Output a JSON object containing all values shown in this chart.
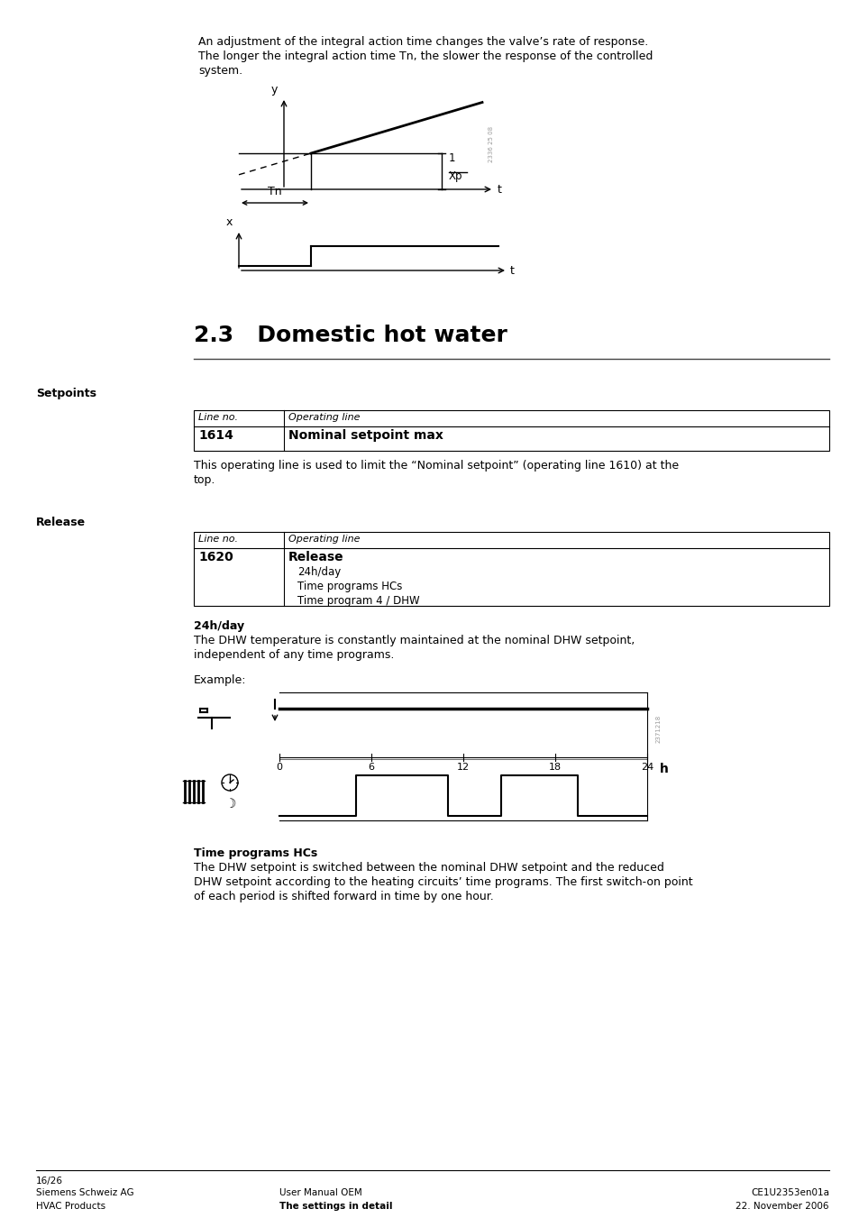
{
  "page_bg": "#ffffff",
  "intro_text_line1": "An adjustment of the integral action time changes the valve’s rate of response.",
  "intro_text_line2": "The longer the integral action time Tn, the slower the response of the controlled",
  "intro_text_line3": "system.",
  "section_title": "2.3   Domestic hot water",
  "setpoints_label": "Setpoints",
  "release_label": "Release",
  "table1_line_no": "1614",
  "table1_op_line": "Nominal setpoint max",
  "table1_header_line": "Line no.",
  "table1_header_op": "Operating line",
  "desc1_line1": "This operating line is used to limit the “Nominal setpoint” (operating line 1610) at the",
  "desc1_line2": "top.",
  "table2_line_no": "1620",
  "table2_op_line_bold": "Release",
  "table2_items": [
    "24h/day",
    "Time programs HCs",
    "Time program 4 / DHW"
  ],
  "table2_header_line": "Line no.",
  "table2_header_op": "Operating line",
  "bold_24h": "24h/day",
  "desc_24h_line1": "The DHW temperature is constantly maintained at the nominal DHW setpoint,",
  "desc_24h_line2": "independent of any time programs.",
  "example_label": "Example:",
  "bold_time_prog": "Time programs HCs",
  "desc_time_prog_line1": "The DHW setpoint is switched between the nominal DHW setpoint and the reduced",
  "desc_time_prog_line2": "DHW setpoint according to the heating circuits’ time programs. The first switch-on point",
  "desc_time_prog_line3": "of each period is shifted forward in time by one hour.",
  "footer_page": "16/26",
  "footer_left1": "Siemens Schweiz AG",
  "footer_left2": "HVAC Products",
  "footer_mid1": "User Manual OEM",
  "footer_mid2": "The settings in detail",
  "footer_right1": "CE1U2353en01a",
  "footer_right2": "22. November 2006",
  "text_color": "#000000",
  "watermark1": "2336 25 08",
  "watermark2": "2371218"
}
